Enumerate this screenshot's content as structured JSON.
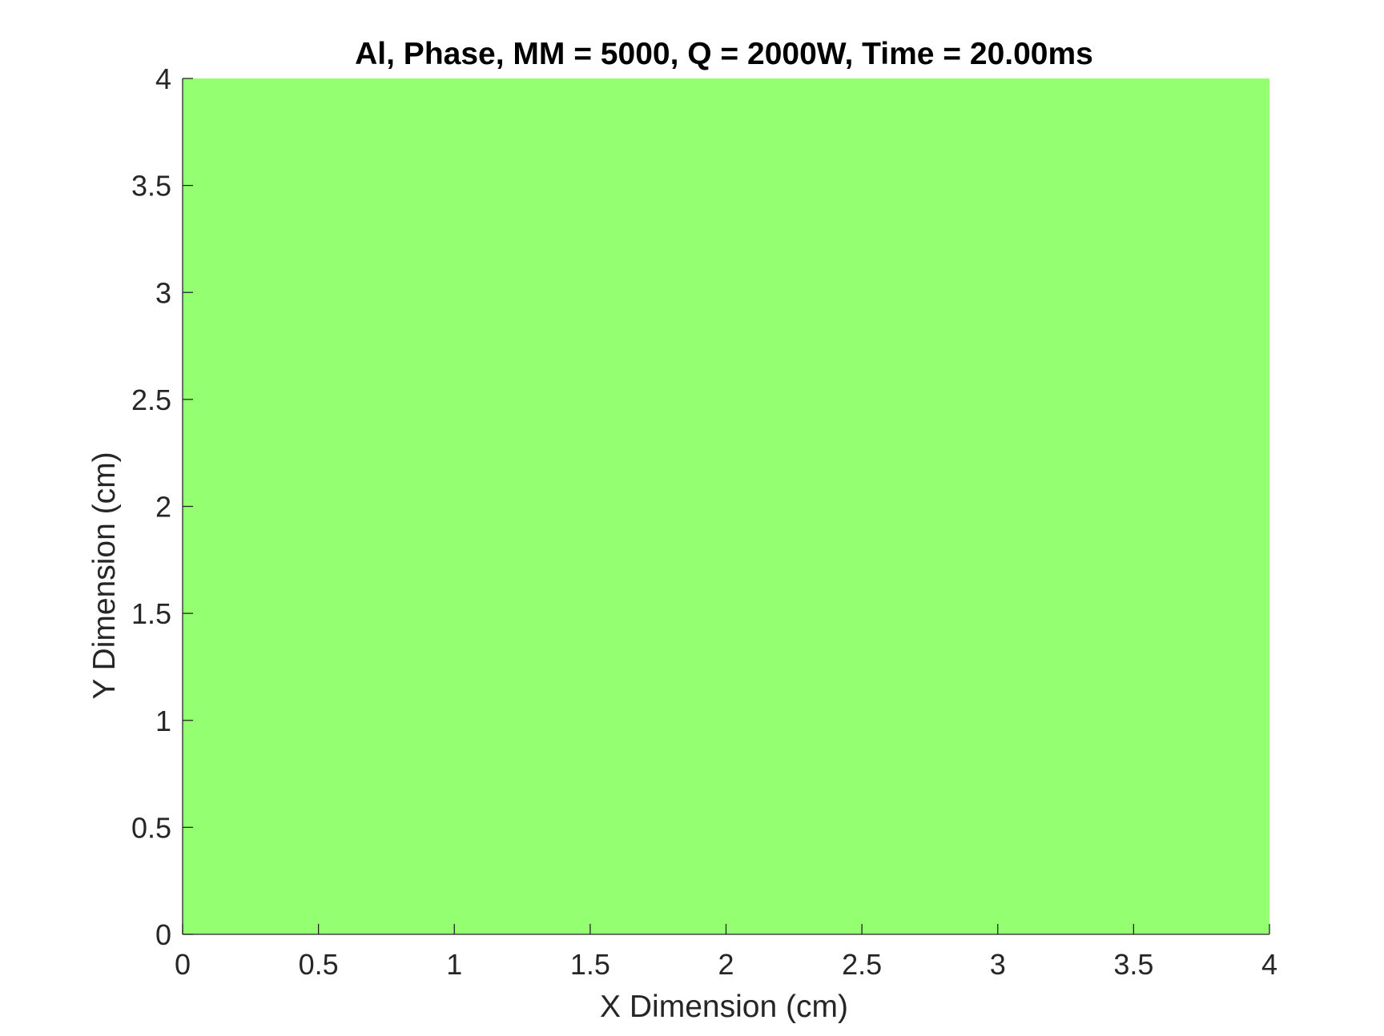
{
  "chart_data": {
    "type": "heatmap",
    "title": "Al, Phase, MM = 5000, Q = 2000W, Time = 20.00ms",
    "xlabel": "X Dimension (cm)",
    "ylabel": "Y Dimension (cm)",
    "xlim": [
      0,
      4
    ],
    "ylim": [
      0,
      4
    ],
    "xticks": [
      0,
      0.5,
      1,
      1.5,
      2,
      2.5,
      3,
      3.5,
      4
    ],
    "yticks": [
      0,
      0.5,
      1,
      1.5,
      2,
      2.5,
      3,
      3.5,
      4
    ],
    "xtick_labels": [
      "0",
      "0.5",
      "1",
      "1.5",
      "2",
      "2.5",
      "3",
      "3.5",
      "4"
    ],
    "ytick_labels": [
      "0",
      "0.5",
      "1",
      "1.5",
      "2",
      "2.5",
      "3",
      "3.5",
      "4"
    ],
    "grid": false,
    "fill_color": "#94ff70",
    "regions": [
      {
        "x": [
          0,
          4
        ],
        "y": [
          0,
          4
        ],
        "color": "#94ff70"
      }
    ]
  }
}
